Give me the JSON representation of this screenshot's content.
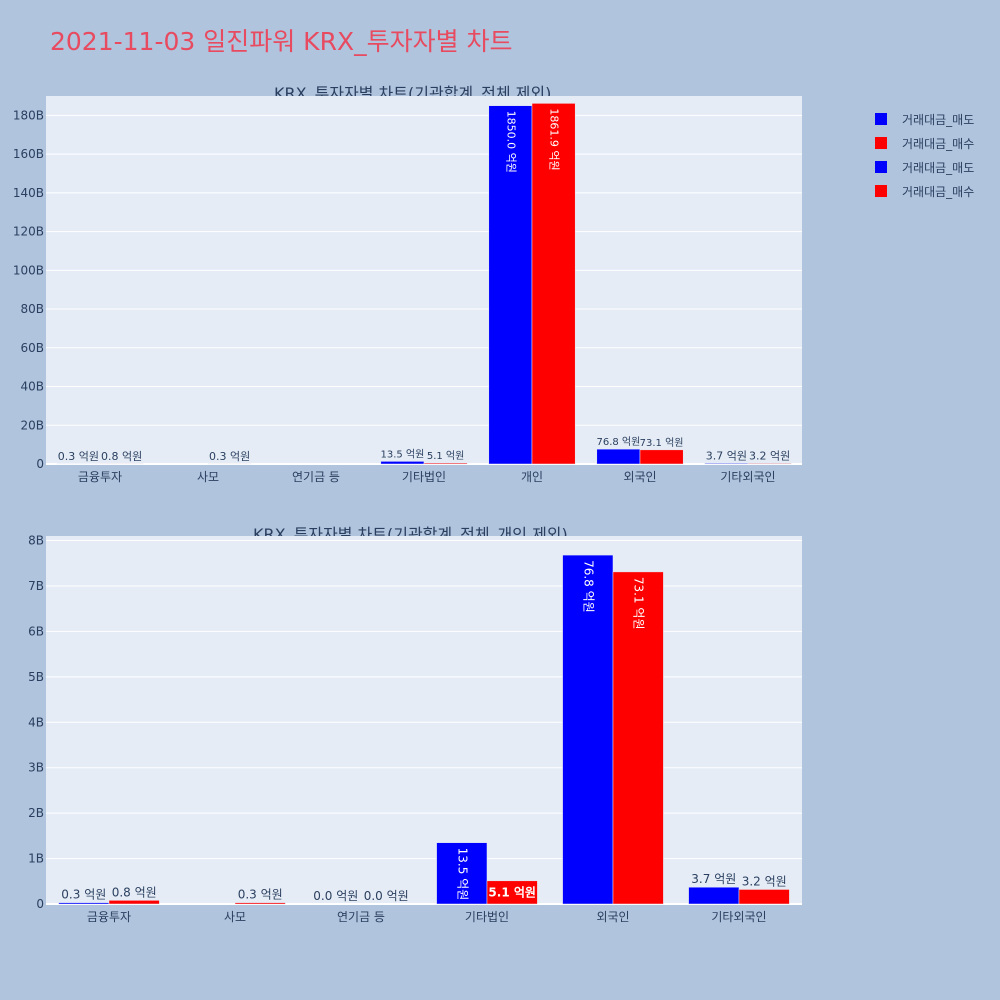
{
  "page": {
    "title": "2021-11-03 일진파워 KRX_투자자별 차트",
    "background": "#b0c4de",
    "title_color": "#e84a5f",
    "plot_background": "#e5ecf6"
  },
  "legend": {
    "placement": "top-right",
    "items": [
      {
        "label": "거래대금_매도",
        "color": "#0000ff"
      },
      {
        "label": "거래대금_매수",
        "color": "#ff0000"
      },
      {
        "label": "거래대금_매도",
        "color": "#0000ff"
      },
      {
        "label": "거래대금_매수",
        "color": "#ff0000"
      }
    ]
  },
  "chart_data": [
    {
      "type": "bar",
      "title": "KRX_투자자별 차트(기관합계_전체 제외)",
      "categories": [
        "금융투자",
        "사모",
        "연기금 등",
        "기타법인",
        "개인",
        "외국인",
        "기타외국인"
      ],
      "ylim": [
        0,
        190
      ],
      "y_ticks": [
        0,
        20,
        40,
        60,
        80,
        100,
        120,
        140,
        160,
        180
      ],
      "y_tick_labels": [
        "0",
        "20B",
        "40B",
        "60B",
        "80B",
        "100B",
        "120B",
        "140B",
        "160B",
        "180B"
      ],
      "grid": true,
      "series": [
        {
          "name": "거래대금_매도",
          "color": "#0000ff",
          "values": [
            0.03,
            0,
            0,
            1.35,
            185.0,
            7.68,
            0.37
          ],
          "labels": [
            "0.3 억원",
            "",
            "",
            "13.5 억원",
            "1850.0 억원",
            "76.8 억원",
            "3.7 억원"
          ]
        },
        {
          "name": "거래대금_매수",
          "color": "#ff0000",
          "values": [
            0.08,
            0.03,
            0,
            0.51,
            186.19,
            7.31,
            0.32
          ],
          "labels": [
            "0.8 억원",
            "0.3 억원",
            "",
            "5.1 억원",
            "1861.9 억원",
            "73.1 억원",
            "3.2 억원"
          ]
        }
      ]
    },
    {
      "type": "bar",
      "title": "KRX_투자자별 차트(기관합계_전체_개인 제외)",
      "categories": [
        "금융투자",
        "사모",
        "연기금 등",
        "기타법인",
        "외국인",
        "기타외국인"
      ],
      "ylim": [
        0,
        8.1
      ],
      "y_ticks": [
        0,
        1,
        2,
        3,
        4,
        5,
        6,
        7,
        8
      ],
      "y_tick_labels": [
        "0",
        "1B",
        "2B",
        "3B",
        "4B",
        "5B",
        "6B",
        "7B",
        "8B"
      ],
      "grid": true,
      "series": [
        {
          "name": "거래대금_매도",
          "color": "#0000ff",
          "values": [
            0.03,
            0,
            0.0,
            1.35,
            7.68,
            0.37
          ],
          "labels": [
            "0.3 억원",
            "",
            "0.0 억원",
            "13.5 억원",
            "76.8 억원",
            "3.7 억원"
          ]
        },
        {
          "name": "거래대금_매수",
          "color": "#ff0000",
          "values": [
            0.08,
            0.03,
            0.0,
            0.51,
            7.31,
            0.32
          ],
          "labels": [
            "0.8 억원",
            "0.3 억원",
            "0.0 억원",
            "5.1 억원",
            "73.1 억원",
            "3.2 억원"
          ]
        }
      ]
    }
  ]
}
